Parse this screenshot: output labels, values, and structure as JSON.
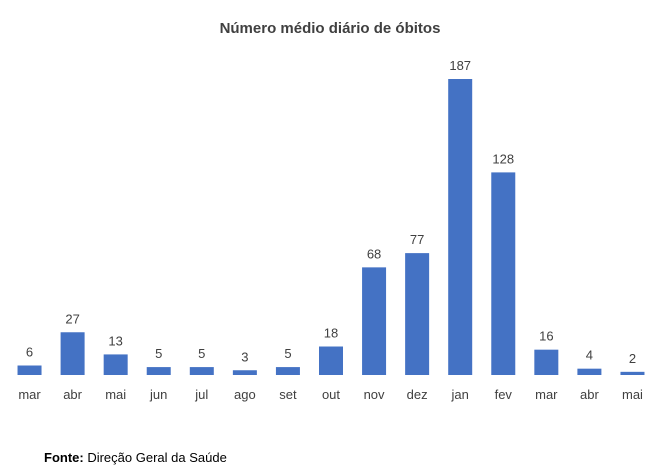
{
  "chart_data": {
    "type": "bar",
    "title": "Número médio diário de óbitos",
    "categories": [
      "mar",
      "abr",
      "mai",
      "jun",
      "jul",
      "ago",
      "set",
      "out",
      "nov",
      "dez",
      "jan",
      "fev",
      "mar",
      "abr",
      "mai"
    ],
    "values": [
      6,
      27,
      13,
      5,
      5,
      3,
      5,
      18,
      68,
      77,
      187,
      128,
      16,
      4,
      2
    ],
    "data_labels": [
      "6",
      "27",
      "13",
      "5",
      "5",
      "3",
      "5",
      "18",
      "68",
      "77",
      "187",
      "128",
      "16",
      "4",
      "2"
    ],
    "xlabel": "",
    "ylabel": "",
    "ylim": [
      0,
      187
    ],
    "grid": false,
    "legend": "none",
    "bar_color": "#4472C4"
  },
  "source": {
    "prefix": "Fonte:",
    "text": " Direção Geral da Saúde"
  }
}
